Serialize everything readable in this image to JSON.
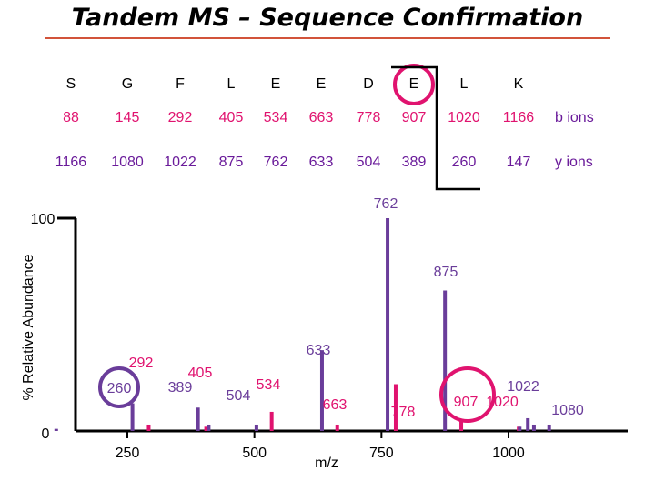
{
  "title": "Tandem MS – Sequence Confirmation",
  "sequence": {
    "residues": [
      "S",
      "G",
      "F",
      "L",
      "E",
      "E",
      "D",
      "E",
      "L",
      "K"
    ],
    "b_ions": [
      "88",
      "145",
      "292",
      "405",
      "534",
      "663",
      "778",
      "907",
      "1020",
      "1166"
    ],
    "y_ions": [
      "1166",
      "1080",
      "1022",
      "875",
      "762",
      "633",
      "504",
      "389",
      "260",
      "147"
    ],
    "b_label": "b ions",
    "y_label": "y ions",
    "highlighted_residue_index": 7
  },
  "chart_data": {
    "type": "bar",
    "xlabel": "m/z",
    "ylabel": "% Relative Abundance",
    "xlim": [
      100,
      1150
    ],
    "ylim": [
      0,
      100
    ],
    "xticks": [
      250,
      500,
      750,
      1000
    ],
    "yticks": [
      0,
      100
    ],
    "series": [
      {
        "name": "b ions",
        "color": "#e0136f",
        "points": [
          {
            "x": 292,
            "y": 3,
            "label": "292"
          },
          {
            "x": 405,
            "y": 2,
            "label": "405"
          },
          {
            "x": 534,
            "y": 9,
            "label": "534"
          },
          {
            "x": 663,
            "y": 3,
            "label": "663"
          },
          {
            "x": 778,
            "y": 22,
            "label": "778"
          },
          {
            "x": 907,
            "y": 5,
            "label": "907"
          },
          {
            "x": 1020,
            "y": 2,
            "label": "1020"
          }
        ]
      },
      {
        "name": "y ions",
        "color": "#6a3d9a",
        "points": [
          {
            "x": 260,
            "y": 13,
            "label": "260"
          },
          {
            "x": 389,
            "y": 11,
            "label": "389"
          },
          {
            "x": 504,
            "y": 3,
            "label": "504"
          },
          {
            "x": 633,
            "y": 38,
            "label": "633"
          },
          {
            "x": 762,
            "y": 100,
            "label": "762"
          },
          {
            "x": 875,
            "y": 66,
            "label": "875"
          },
          {
            "x": 1022,
            "y": 2,
            "label": "1022"
          },
          {
            "x": 1080,
            "y": 3,
            "label": "1080"
          }
        ]
      },
      {
        "name": "other",
        "color": "#6a3d9a",
        "points": [
          {
            "x": 110,
            "y": 1
          },
          {
            "x": 410,
            "y": 3
          },
          {
            "x": 1038,
            "y": 6
          },
          {
            "x": 1050,
            "y": 3
          }
        ]
      }
    ],
    "highlighted_peak": "907"
  }
}
